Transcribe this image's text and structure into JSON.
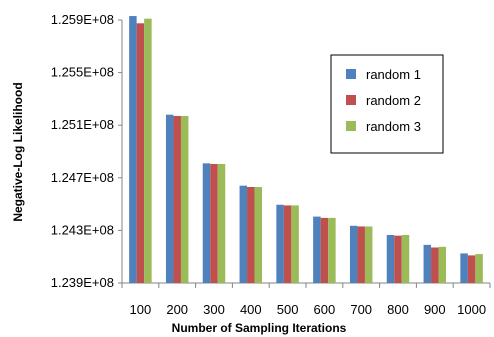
{
  "chart_data": {
    "type": "bar",
    "title": "",
    "xlabel": "Number of Sampling Iterations",
    "ylabel": "Negative-Log Likelihood",
    "categories": [
      "100",
      "200",
      "300",
      "400",
      "500",
      "600",
      "700",
      "800",
      "900",
      "1000"
    ],
    "series": [
      {
        "name": "random 1",
        "color": "#4F81BD",
        "values": [
          125930000,
          125180000,
          124810000,
          124640000,
          124495000,
          124405000,
          124335000,
          124265000,
          124190000,
          124125000
        ]
      },
      {
        "name": "random 2",
        "color": "#C0504D",
        "values": [
          125875000,
          125170000,
          124805000,
          124630000,
          124490000,
          124395000,
          124330000,
          124260000,
          124170000,
          124110000
        ]
      },
      {
        "name": "random 3",
        "color": "#9BBB59",
        "values": [
          125910000,
          125170000,
          124805000,
          124630000,
          124490000,
          124395000,
          124330000,
          124265000,
          124175000,
          124120000
        ]
      }
    ],
    "ylim": [
      123900000,
      125900000
    ],
    "yticks": [
      123900000,
      124300000,
      124700000,
      125100000,
      125500000,
      125900000
    ],
    "ytick_labels": [
      "1.239E+08",
      "1.243E+08",
      "1.247E+08",
      "1.251E+08",
      "1.255E+08",
      "1.259E+08"
    ],
    "grid": false,
    "legend_position": "right"
  }
}
